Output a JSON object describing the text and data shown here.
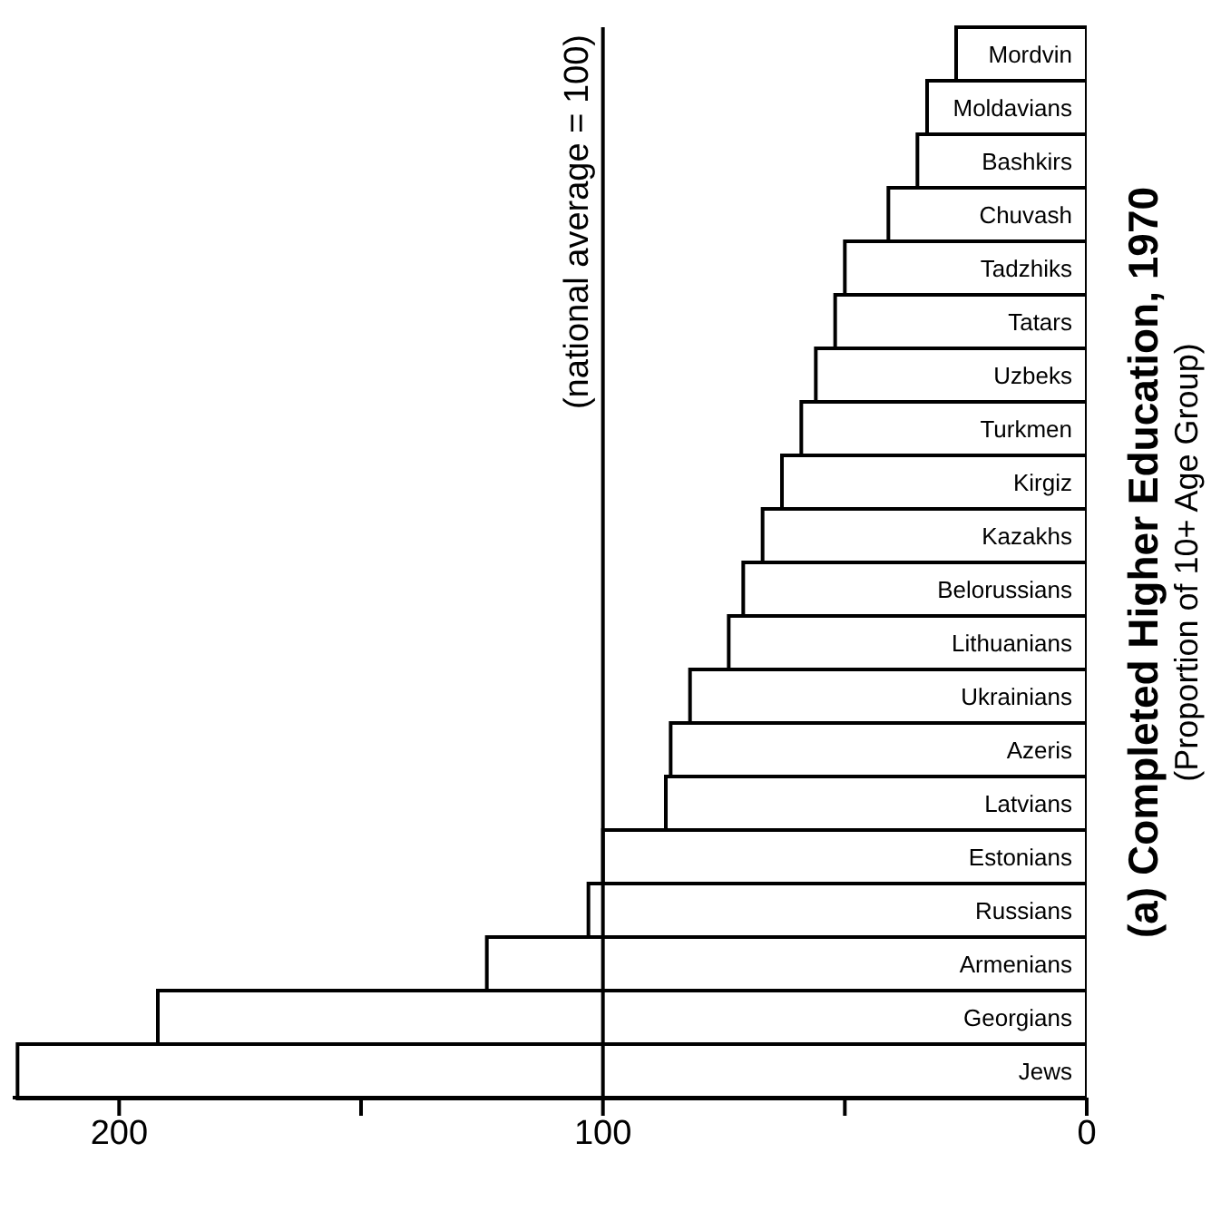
{
  "chart_data": {
    "type": "bar",
    "orientation": "horizontal",
    "title": "(a) Completed Higher Education, 1970",
    "subtitle": "(Proportion of 10+ Age Group)",
    "categories": [
      "Mordvin",
      "Moldavians",
      "Bashkirs",
      "Chuvash",
      "Tadzhiks",
      "Tatars",
      "Uzbeks",
      "Turkmen",
      "Kirgiz",
      "Kazakhs",
      "Belorussians",
      "Lithuanians",
      "Ukrainians",
      "Azeris",
      "Latvians",
      "Estonians",
      "Russians",
      "Armenians",
      "Georgians",
      "Jews"
    ],
    "values": [
      27,
      33,
      35,
      41,
      50,
      52,
      56,
      59,
      63,
      67,
      71,
      74,
      82,
      86,
      87,
      100,
      103,
      124,
      192,
      221
    ],
    "color": "#ffffff",
    "xlim": [
      222,
      0
    ],
    "xticks": [
      0,
      {
        "value": 50,
        "label": null
      },
      100,
      {
        "value": 150,
        "label": null
      },
      200
    ],
    "ref_lines": [
      {
        "axis": "x",
        "value": 100,
        "label": "(national average = 100)",
        "color": "#000000"
      }
    ],
    "grid": false,
    "legend": false
  }
}
